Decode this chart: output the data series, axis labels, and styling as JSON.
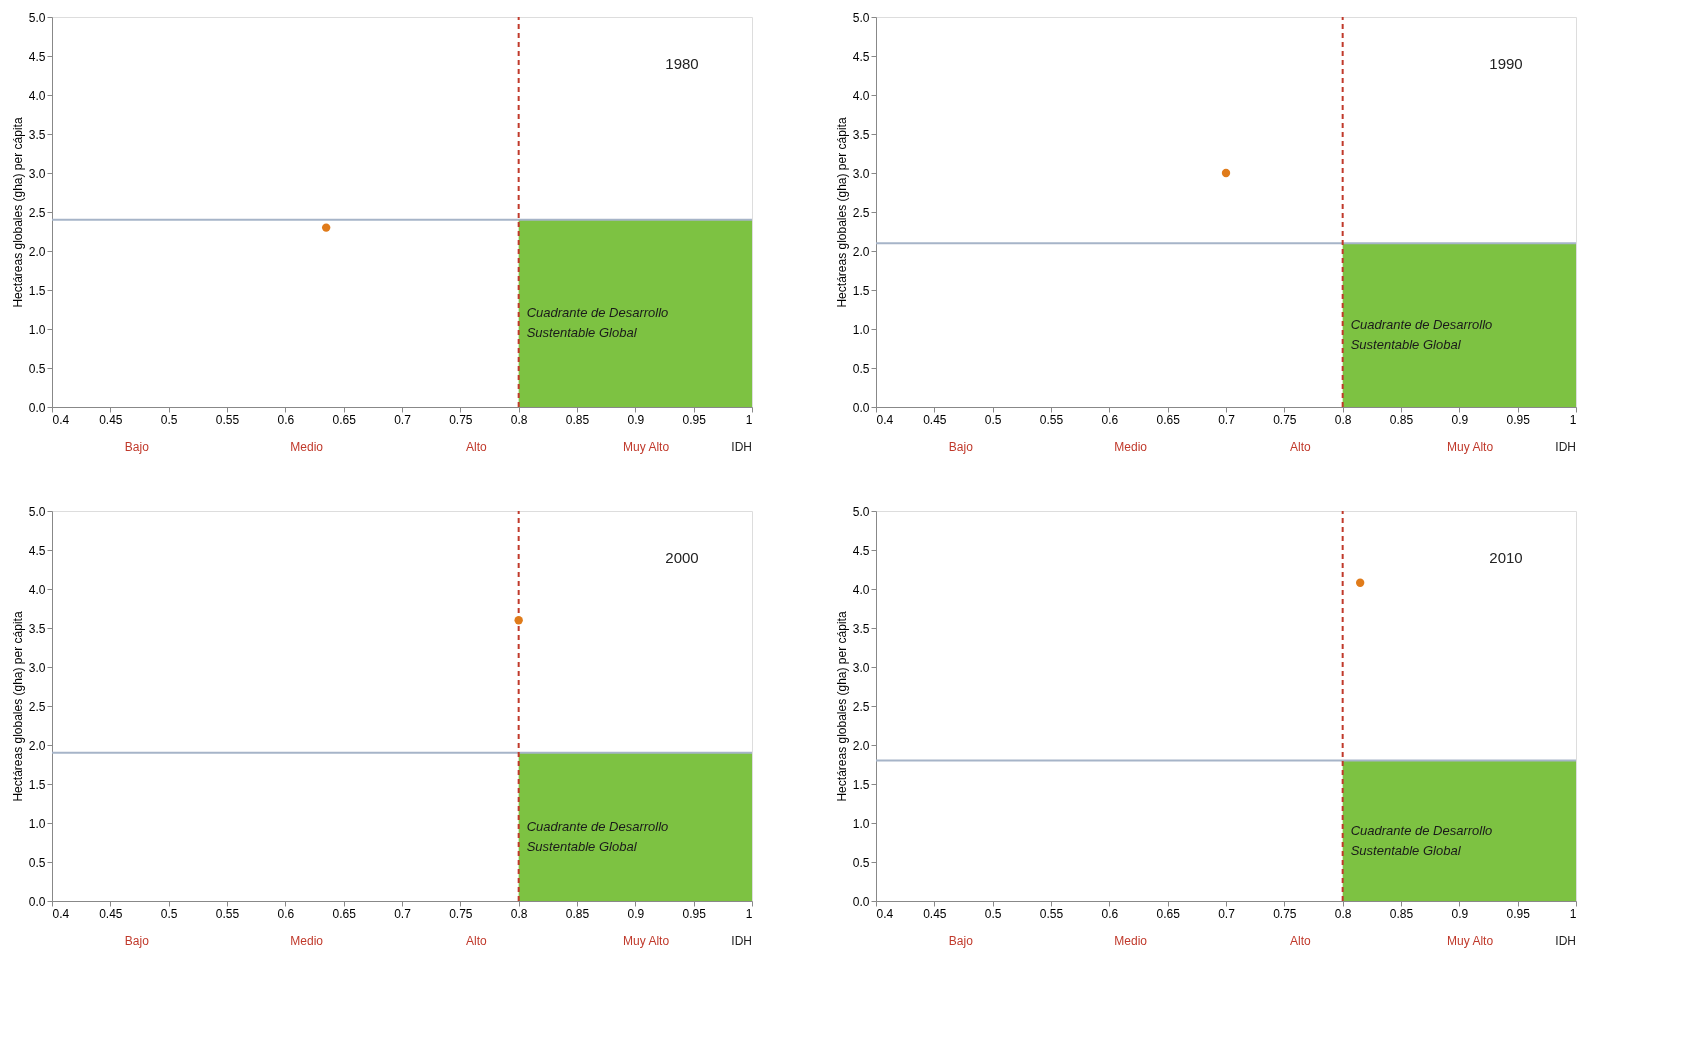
{
  "chart_data": [
    {
      "type": "scatter",
      "title": "1980",
      "ylabel": "Hectáreas globales (gha) per cápita",
      "x": [
        0.635
      ],
      "values": [
        2.3
      ],
      "color": "#e07b1a",
      "marker": "circle",
      "xlim": [
        0.4,
        1
      ],
      "ylim": [
        0,
        5
      ],
      "xticks": [
        0.4,
        0.45,
        0.5,
        0.55,
        0.6,
        0.65,
        0.7,
        0.75,
        0.8,
        0.85,
        0.9,
        0.95,
        1
      ],
      "yticks": [
        {
          "value": 0,
          "label": "0.0"
        },
        0.5,
        {
          "value": 1,
          "label": "1.0"
        },
        1.5,
        {
          "value": 2,
          "label": "2.0"
        },
        2.5,
        {
          "value": 3,
          "label": "3.0"
        },
        3.5,
        {
          "value": 4,
          "label": "4.0"
        },
        4.5,
        {
          "value": 5,
          "label": "5.0"
        }
      ],
      "grid": false,
      "ref_lines": [
        {
          "axis": "y",
          "value": 2.4,
          "color": "#a6b4c8",
          "line_style": "solid"
        },
        {
          "axis": "x",
          "value": 0.8,
          "color": "#c0392b",
          "line_style": "dashed"
        }
      ],
      "bands": [
        {
          "axis": "x",
          "from": 0.8,
          "to": 1,
          "label": "Cuadrante de Desarrollo Sustentable Global",
          "color": "#7dc242"
        }
      ],
      "annotations": [
        "Bajo",
        "Medio",
        "Alto",
        "Muy Alto",
        "IDH"
      ]
    },
    {
      "type": "scatter",
      "title": "1990",
      "ylabel": "Hectáreas globales (gha) per cápita",
      "x": [
        0.7
      ],
      "values": [
        3.0
      ],
      "color": "#e07b1a",
      "marker": "circle",
      "xlim": [
        0.4,
        1
      ],
      "ylim": [
        0,
        5
      ],
      "xticks": [
        0.4,
        0.45,
        0.5,
        0.55,
        0.6,
        0.65,
        0.7,
        0.75,
        0.8,
        0.85,
        0.9,
        0.95,
        1
      ],
      "yticks": [
        {
          "value": 0,
          "label": "0.0"
        },
        0.5,
        {
          "value": 1,
          "label": "1.0"
        },
        1.5,
        {
          "value": 2,
          "label": "2.0"
        },
        2.5,
        {
          "value": 3,
          "label": "3.0"
        },
        3.5,
        {
          "value": 4,
          "label": "4.0"
        },
        4.5,
        {
          "value": 5,
          "label": "5.0"
        }
      ],
      "grid": false,
      "ref_lines": [
        {
          "axis": "y",
          "value": 2.1,
          "color": "#a6b4c8",
          "line_style": "solid"
        },
        {
          "axis": "x",
          "value": 0.8,
          "color": "#c0392b",
          "line_style": "dashed"
        }
      ],
      "bands": [
        {
          "axis": "x",
          "from": 0.8,
          "to": 1,
          "label": "Cuadrante de Desarrollo Sustentable Global",
          "color": "#7dc242"
        }
      ],
      "annotations": [
        "Bajo",
        "Medio",
        "Alto",
        "Muy Alto",
        "IDH"
      ]
    },
    {
      "type": "scatter",
      "title": "2000",
      "ylabel": "Hectáreas globales (gha) per cápita",
      "x": [
        0.8
      ],
      "values": [
        3.6
      ],
      "color": "#e07b1a",
      "marker": "circle",
      "xlim": [
        0.4,
        1
      ],
      "ylim": [
        0,
        5
      ],
      "xticks": [
        0.4,
        0.45,
        0.5,
        0.55,
        0.6,
        0.65,
        0.7,
        0.75,
        0.8,
        0.85,
        0.9,
        0.95,
        1
      ],
      "yticks": [
        {
          "value": 0,
          "label": "0.0"
        },
        0.5,
        {
          "value": 1,
          "label": "1.0"
        },
        1.5,
        {
          "value": 2,
          "label": "2.0"
        },
        2.5,
        {
          "value": 3,
          "label": "3.0"
        },
        3.5,
        {
          "value": 4,
          "label": "4.0"
        },
        4.5,
        {
          "value": 5,
          "label": "5.0"
        }
      ],
      "grid": false,
      "ref_lines": [
        {
          "axis": "y",
          "value": 1.9,
          "color": "#a6b4c8",
          "line_style": "solid"
        },
        {
          "axis": "x",
          "value": 0.8,
          "color": "#c0392b",
          "line_style": "dashed"
        }
      ],
      "bands": [
        {
          "axis": "x",
          "from": 0.8,
          "to": 1,
          "label": "Cuadrante de Desarrollo Sustentable Global",
          "color": "#7dc242"
        }
      ],
      "annotations": [
        "Bajo",
        "Medio",
        "Alto",
        "Muy Alto",
        "IDH"
      ]
    },
    {
      "type": "scatter",
      "title": "2010",
      "ylabel": "Hectáreas globales (gha) per cápita",
      "x": [
        0.815
      ],
      "values": [
        4.08
      ],
      "color": "#e07b1a",
      "marker": "circle",
      "xlim": [
        0.4,
        1
      ],
      "ylim": [
        0,
        5
      ],
      "xticks": [
        0.4,
        0.45,
        0.5,
        0.55,
        0.6,
        0.65,
        0.7,
        0.75,
        0.8,
        0.85,
        0.9,
        0.95,
        1
      ],
      "yticks": [
        {
          "value": 0,
          "label": "0.0"
        },
        0.5,
        {
          "value": 1,
          "label": "1.0"
        },
        1.5,
        {
          "value": 2,
          "label": "2.0"
        },
        2.5,
        {
          "value": 3,
          "label": "3.0"
        },
        3.5,
        {
          "value": 4,
          "label": "4.0"
        },
        4.5,
        {
          "value": 5,
          "label": "5.0"
        }
      ],
      "grid": false,
      "ref_lines": [
        {
          "axis": "y",
          "value": 1.8,
          "color": "#a6b4c8",
          "line_style": "solid"
        },
        {
          "axis": "x",
          "value": 0.8,
          "color": "#c0392b",
          "line_style": "dashed"
        }
      ],
      "bands": [
        {
          "axis": "x",
          "from": 0.8,
          "to": 1,
          "label": "Cuadrante de Desarrollo Sustentable Global",
          "color": "#7dc242"
        }
      ],
      "annotations": [
        "Bajo",
        "Medio",
        "Alto",
        "Muy Alto",
        "IDH"
      ]
    }
  ]
}
